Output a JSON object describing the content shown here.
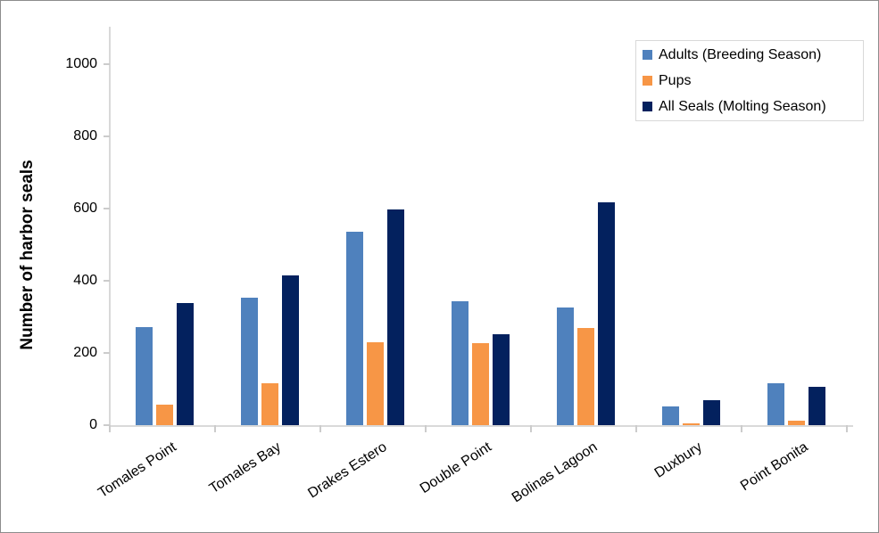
{
  "chart_data": {
    "type": "bar",
    "title": "",
    "categories": [
      "Tomales Point",
      "Tomales Bay",
      "Drakes Estero",
      "Double Point",
      "Bolinas Lagoon",
      "Duxbury",
      "Point Bonita"
    ],
    "series": [
      {
        "name": "Adults (Breeding Season)",
        "color": "#4F81BD",
        "values": [
          271,
          353,
          536,
          342,
          326,
          53,
          117
        ]
      },
      {
        "name": "Pups",
        "color": "#F79646",
        "values": [
          57,
          117,
          230,
          228,
          270,
          5,
          12
        ]
      },
      {
        "name": "All Seals (Molting Season)",
        "color": "#03215E",
        "values": [
          338,
          414,
          598,
          252,
          617,
          68,
          106
        ]
      }
    ],
    "xlabel": "",
    "ylabel": "Number of harbor seals",
    "ylim": [
      0,
      1100
    ],
    "yticks": [
      0,
      200,
      400,
      600,
      800,
      1000
    ],
    "grid": false,
    "legend_position": "top-right",
    "x_tick_label_rotation_deg": -33
  },
  "style": {
    "axis_line_color": "#D9D9D9",
    "tick_mark_color": "#CCCCCC",
    "text_color": "#000000",
    "background": "#FFFFFF",
    "outer_border_color": "#8C8C8C"
  }
}
